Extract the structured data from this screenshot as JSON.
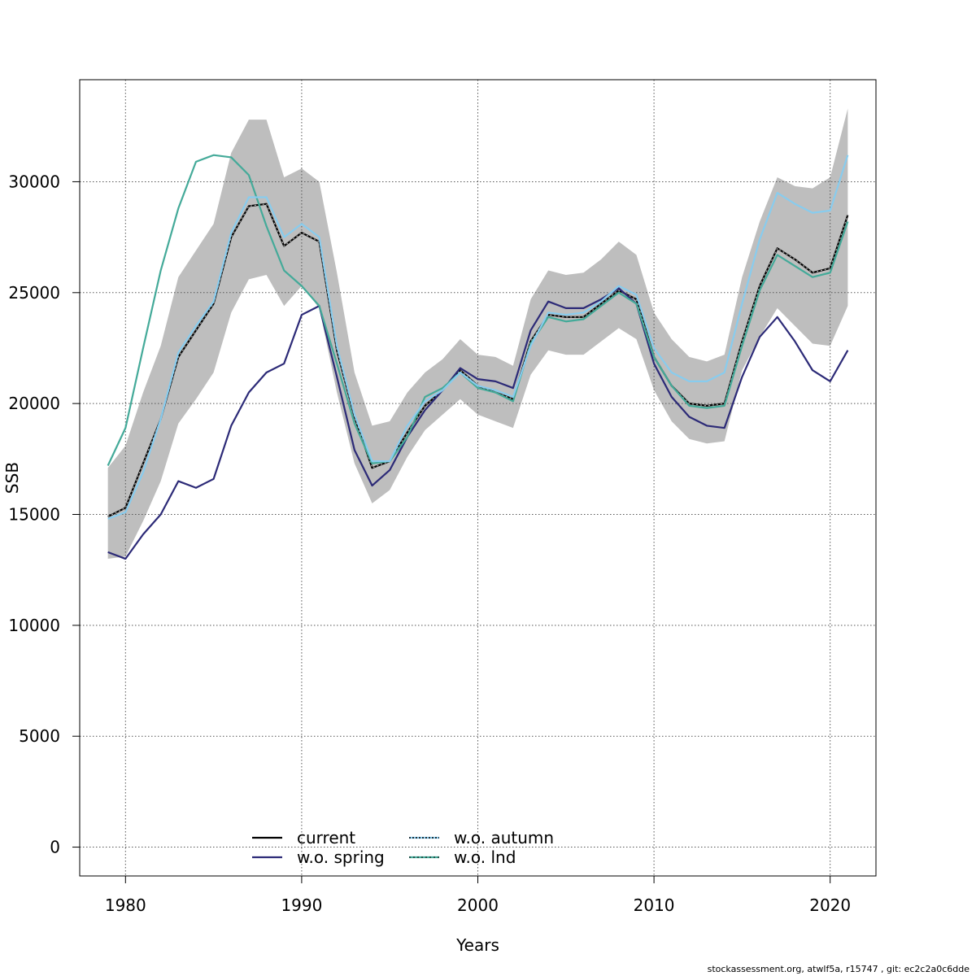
{
  "footer": "stockassessment.org, atwlf5a, r15747 , git: ec2c2a0c6dde",
  "chart_data": {
    "type": "line",
    "title": "",
    "xlabel": "Years",
    "ylabel": "SSB",
    "xlim": [
      1977.4,
      2022.6
    ],
    "ylim": [
      -1300,
      34600
    ],
    "xticks": [
      1980,
      1990,
      2000,
      2010,
      2020
    ],
    "yticks": [
      0,
      5000,
      10000,
      15000,
      20000,
      25000,
      30000
    ],
    "grid": true,
    "legend_position": "bottom",
    "x": [
      1979,
      1980,
      1981,
      1982,
      1983,
      1984,
      1985,
      1986,
      1987,
      1988,
      1989,
      1990,
      1991,
      1992,
      1993,
      1994,
      1995,
      1996,
      1997,
      1998,
      1999,
      2000,
      2001,
      2002,
      2003,
      2004,
      2005,
      2006,
      2007,
      2008,
      2009,
      2010,
      2011,
      2012,
      2013,
      2014,
      2015,
      2016,
      2017,
      2018,
      2019,
      2020,
      2021
    ],
    "band": {
      "color": "#bebebe",
      "lower": [
        13000,
        13100,
        14700,
        16500,
        19100,
        20200,
        21400,
        24100,
        25600,
        25800,
        24400,
        25300,
        24300,
        20500,
        17300,
        15500,
        16100,
        17600,
        18800,
        19500,
        20200,
        19500,
        19200,
        18900,
        21300,
        22400,
        22200,
        22200,
        22800,
        23400,
        22900,
        20600,
        19200,
        18400,
        18200,
        18300,
        21500,
        23000,
        24300,
        23500,
        22700,
        22600,
        24400
      ],
      "upper": [
        17100,
        18100,
        20500,
        22600,
        25700,
        26900,
        28100,
        31300,
        32800,
        32800,
        30200,
        30600,
        30000,
        25900,
        21400,
        19000,
        19200,
        20500,
        21400,
        22000,
        22900,
        22200,
        22100,
        21700,
        24700,
        26000,
        25800,
        25900,
        26500,
        27300,
        26700,
        24100,
        22900,
        22100,
        21900,
        22200,
        25700,
        28200,
        30200,
        29800,
        29700,
        30200,
        33300
      ]
    },
    "series": [
      {
        "name": "current",
        "color": "#000000",
        "values": [
          14900,
          15300,
          17300,
          19300,
          22100,
          23300,
          24500,
          27500,
          28900,
          29000,
          27100,
          27700,
          27300,
          22400,
          19400,
          17100,
          17400,
          18700,
          19900,
          20600,
          21500,
          20800,
          20500,
          20200,
          22800,
          24000,
          23900,
          23900,
          24500,
          25100,
          24700,
          22100,
          20800,
          20000,
          19900,
          20000,
          22800,
          25300,
          27000,
          26500,
          25900,
          26100,
          28500
        ]
      },
      {
        "name": "w.o. spring",
        "color": "#2c2a77",
        "values": [
          13300,
          13000,
          14100,
          15000,
          16500,
          16200,
          16600,
          19000,
          20500,
          21400,
          21800,
          24000,
          24400,
          21200,
          17900,
          16300,
          17000,
          18500,
          19700,
          20600,
          21600,
          21100,
          21000,
          20700,
          23300,
          24600,
          24300,
          24300,
          24700,
          25200,
          24500,
          21800,
          20300,
          19400,
          19000,
          18900,
          21200,
          23000,
          23900,
          22800,
          21500,
          21000,
          22400
        ]
      },
      {
        "name": "w.o. autumn",
        "color": "#88ccee",
        "values": [
          14800,
          15100,
          16900,
          19300,
          22300,
          23500,
          24600,
          27700,
          29300,
          29300,
          27500,
          28100,
          27500,
          22600,
          19500,
          17400,
          17400,
          19000,
          20100,
          20600,
          21400,
          20800,
          20600,
          20300,
          22600,
          24100,
          24000,
          24100,
          24600,
          25300,
          24900,
          22500,
          21400,
          21000,
          21000,
          21400,
          24500,
          27400,
          29500,
          29000,
          28600,
          28700,
          31200
        ]
      },
      {
        "name": "w.o. lnd",
        "color": "#44aa99",
        "values": [
          17200,
          18900,
          22500,
          26000,
          28800,
          30900,
          31200,
          31100,
          30300,
          28000,
          26000,
          25300,
          24400,
          21800,
          19100,
          17300,
          17400,
          18500,
          20300,
          20700,
          21400,
          20700,
          20500,
          20100,
          22700,
          23900,
          23700,
          23800,
          24400,
          25000,
          24500,
          22100,
          20800,
          19900,
          19800,
          19900,
          22600,
          25100,
          26700,
          26200,
          25700,
          25900,
          28200
        ]
      }
    ]
  }
}
